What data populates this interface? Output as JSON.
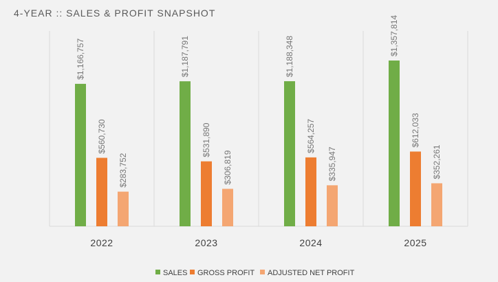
{
  "chart_data": {
    "type": "bar",
    "title": "4-YEAR :: SALES & PROFIT SNAPSHOT",
    "categories": [
      "2022",
      "2023",
      "2024",
      "2025"
    ],
    "series": [
      {
        "name": "SALES",
        "color": "#70ad47",
        "values": [
          1166757,
          1187791,
          1188348,
          1357814
        ],
        "labels": [
          "$1,166,757",
          "$1,187,791",
          "$1,188,348",
          "$1,357,814"
        ]
      },
      {
        "name": "GROSS PROFIT",
        "color": "#ed7d31",
        "values": [
          560730,
          531890,
          564257,
          612033
        ],
        "labels": [
          "$560,730",
          "$531,890",
          "$564,257",
          "$612,033"
        ]
      },
      {
        "name": "ADJUSTED NET PROFIT",
        "color": "#f4a672",
        "values": [
          283752,
          306819,
          335947,
          352261
        ],
        "labels": [
          "$283,752",
          "$306,819",
          "$335,947",
          "$352,261"
        ]
      }
    ],
    "ylim": [
      0,
      1600000
    ],
    "xlabel": "",
    "ylabel": "",
    "grid": false,
    "legend": "bottom"
  }
}
